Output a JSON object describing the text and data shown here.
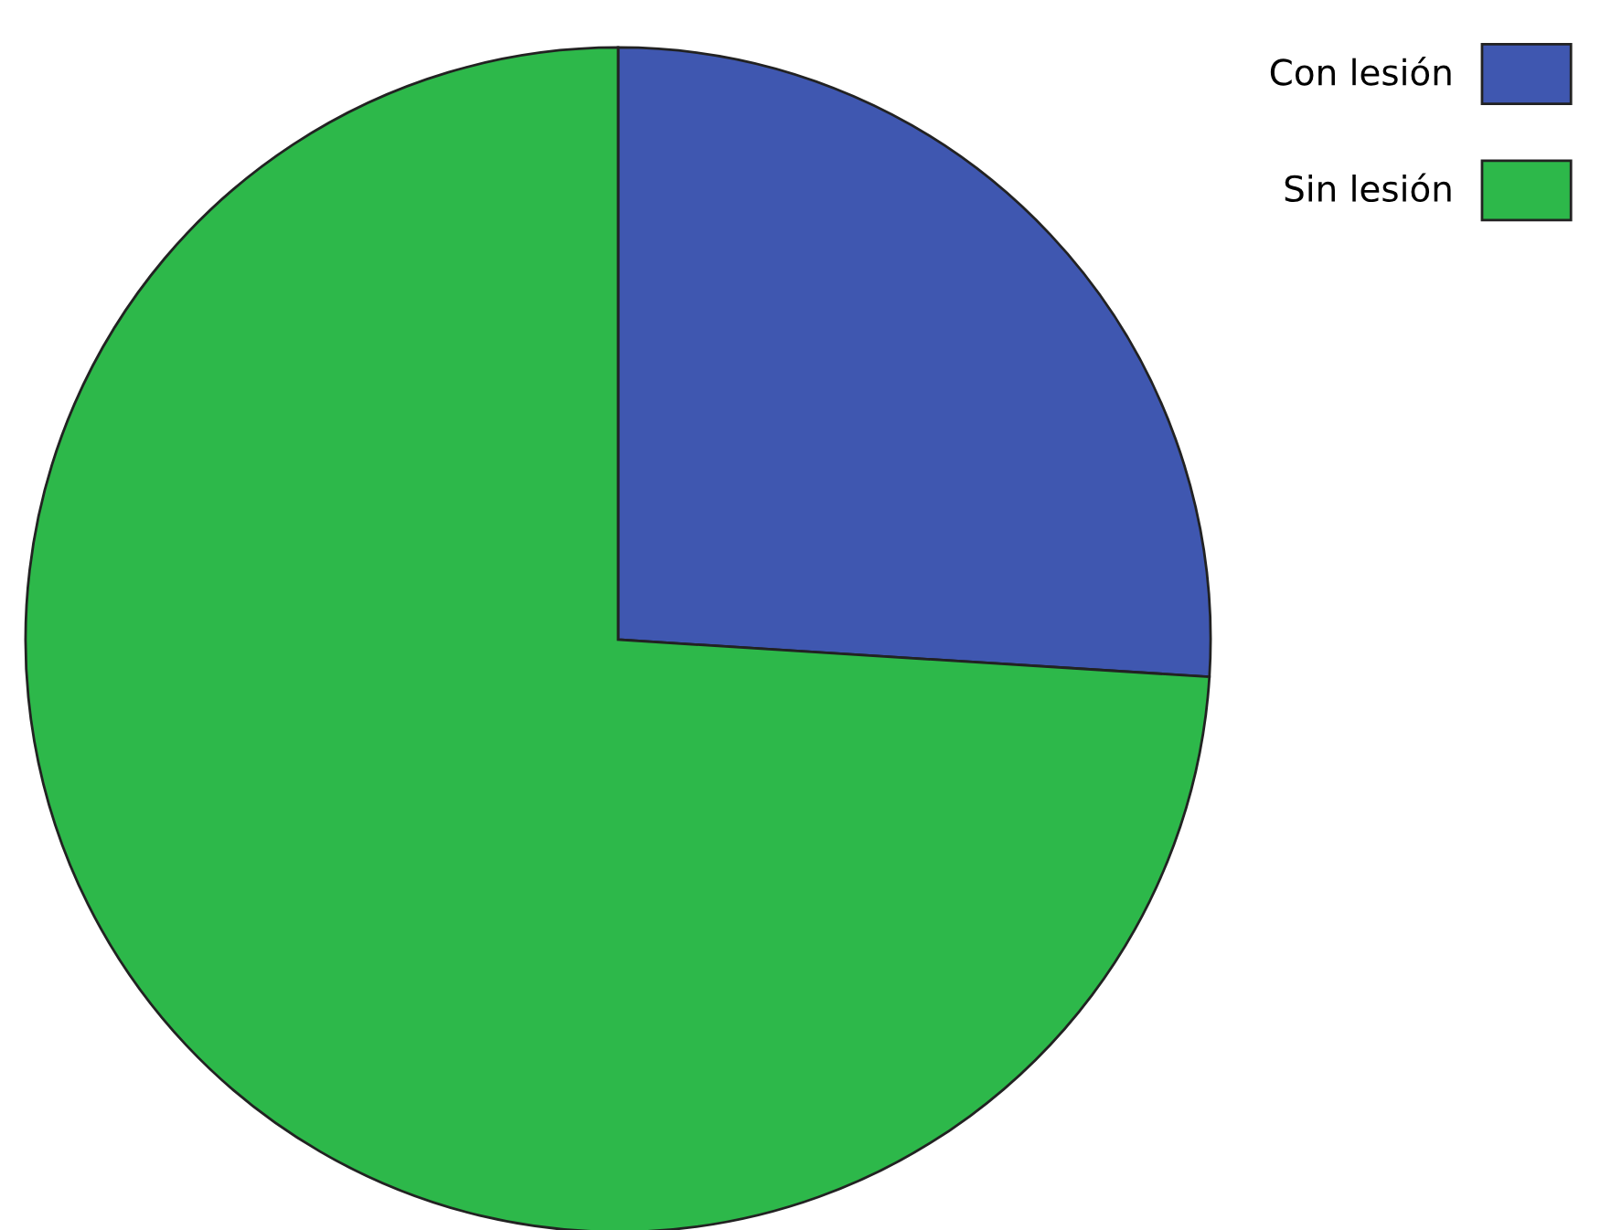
{
  "chart_data": {
    "type": "pie",
    "categories": [
      "Con lesión",
      "Sin lesión"
    ],
    "values": [
      26,
      74
    ],
    "colors": [
      "#3f57b0",
      "#2db84a"
    ],
    "legend": "top right"
  }
}
